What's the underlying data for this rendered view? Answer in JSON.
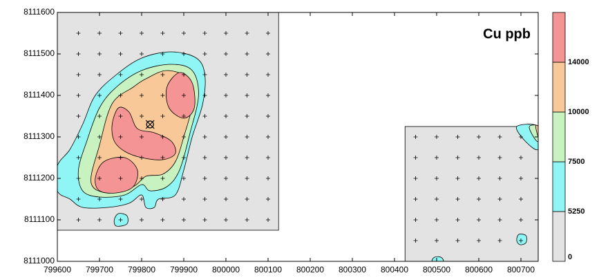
{
  "chart_data": {
    "type": "contour",
    "title": "Cu ppb",
    "xlim": [
      799600,
      800741
    ],
    "ylim": [
      8111000,
      8111600
    ],
    "xticks": [
      799600,
      799700,
      799800,
      799900,
      800000,
      800100,
      800200,
      800300,
      800400,
      800500,
      800600,
      800700
    ],
    "yticks": [
      8111000,
      8111100,
      8111200,
      8111300,
      8111400,
      8111500,
      8111600
    ],
    "colorbar": {
      "levels": [
        0,
        5250,
        7500,
        10000,
        14000
      ],
      "colors": [
        "#e3e3e3",
        "#8ff5f5",
        "#c8f2c0",
        "#f8c898",
        "#f59494"
      ]
    },
    "survey_areas": [
      {
        "x": [
          799600,
          800125
        ],
        "y": [
          8111075,
          8111600
        ]
      },
      {
        "x": [
          800425,
          800741
        ],
        "y": [
          8111000,
          8111325
        ]
      }
    ],
    "samples": [
      {
        "x": [
          799650,
          799700,
          799750,
          799800,
          799850,
          799900,
          799950,
          800000,
          800050,
          800100
        ],
        "y": [
          8111100,
          8111150,
          8111200,
          8111250,
          8111300,
          8111350,
          8111400,
          8111450,
          8111500,
          8111550
        ]
      },
      {
        "x": [
          800450,
          800500,
          800550,
          800600,
          800650,
          800700
        ],
        "y": [
          8111050,
          8111100,
          8111150,
          8111200,
          8111250,
          8111300
        ]
      }
    ],
    "contours": [
      {
        "level": 5250,
        "x": [
          799600,
          799630,
          799660,
          799690,
          799740,
          799800,
          799870,
          799930,
          799950,
          799945,
          799920,
          799900,
          799880,
          799840,
          799830,
          799810,
          799800,
          799770,
          799720,
          799660,
          799630,
          799600
        ],
        "y": [
          8111230,
          8111270,
          8111330,
          8111400,
          8111450,
          8111490,
          8111505,
          8111490,
          8111450,
          8111380,
          8111300,
          8111220,
          8111160,
          8111150,
          8111130,
          8111130,
          8111160,
          8111140,
          8111130,
          8111130,
          8111150,
          8111170
        ]
      },
      {
        "level": 5250,
        "x": [
          799740,
          799735,
          799745,
          799765,
          799765
        ],
        "y": [
          8111085,
          8111100,
          8111115,
          8111110,
          8111090
        ]
      },
      {
        "level": 5250,
        "x": [
          800690,
          800695,
          800712,
          800712,
          800698
        ],
        "y": [
          8111050,
          8111065,
          8111062,
          8111045,
          8111040
        ]
      },
      {
        "level": 5250,
        "x": [
          800490,
          800495,
          800510,
          800515
        ],
        "y": [
          8111000,
          8111010,
          8111010,
          8111000
        ]
      },
      {
        "level": 5250,
        "x": [
          800690,
          800710,
          800741,
          800741
        ],
        "y": [
          8111325,
          8111290,
          8111270,
          8111325
        ]
      },
      {
        "level": 7500,
        "x": [
          799650,
          799670,
          799700,
          799740,
          799800,
          799870,
          799920,
          799935,
          799915,
          799890,
          799860,
          799820,
          799800,
          799760,
          799700,
          799660
        ],
        "y": [
          8111220,
          8111290,
          8111370,
          8111420,
          8111460,
          8111475,
          8111460,
          8111400,
          8111310,
          8111220,
          8111180,
          8111170,
          8111185,
          8111160,
          8111155,
          8111170
        ]
      },
      {
        "level": 7500,
        "x": [
          800720,
          800730,
          800741,
          800741
        ],
        "y": [
          8111325,
          8111300,
          8111290,
          8111325
        ]
      },
      {
        "level": 10000,
        "x": [
          799680,
          799700,
          799730,
          799780,
          799810,
          799860,
          799910,
          799920,
          799900,
          799880,
          799850,
          799810,
          799780,
          799720
        ],
        "y": [
          8111190,
          8111280,
          8111380,
          8111420,
          8111440,
          8111460,
          8111440,
          8111380,
          8111300,
          8111240,
          8111210,
          8111205,
          8111180,
          8111165
        ]
      },
      {
        "level": 10000,
        "x": [
          800735,
          800741,
          800741
        ],
        "y": [
          8111325,
          8111300,
          8111325
        ]
      },
      {
        "level": 14000,
        "x": [
          799700,
          799690,
          799710,
          799760,
          799790,
          799780,
          799740
        ],
        "y": [
          8111170,
          8111200,
          8111240,
          8111250,
          8111220,
          8111180,
          8111165
        ]
      },
      {
        "level": 14000,
        "x": [
          799730,
          799745,
          799770,
          799790,
          799830,
          799870,
          799880,
          799850,
          799800,
          799760,
          799735
        ],
        "y": [
          8111330,
          8111370,
          8111360,
          8111320,
          8111310,
          8111290,
          8111260,
          8111245,
          8111250,
          8111265,
          8111290
        ]
      },
      {
        "level": 14000,
        "x": [
          799860,
          799890,
          799920,
          799925,
          799900,
          799865
        ],
        "y": [
          8111420,
          8111455,
          8111430,
          8111370,
          8111345,
          8111370
        ]
      }
    ],
    "marker": {
      "x": 799820,
      "y": 8111330
    }
  }
}
